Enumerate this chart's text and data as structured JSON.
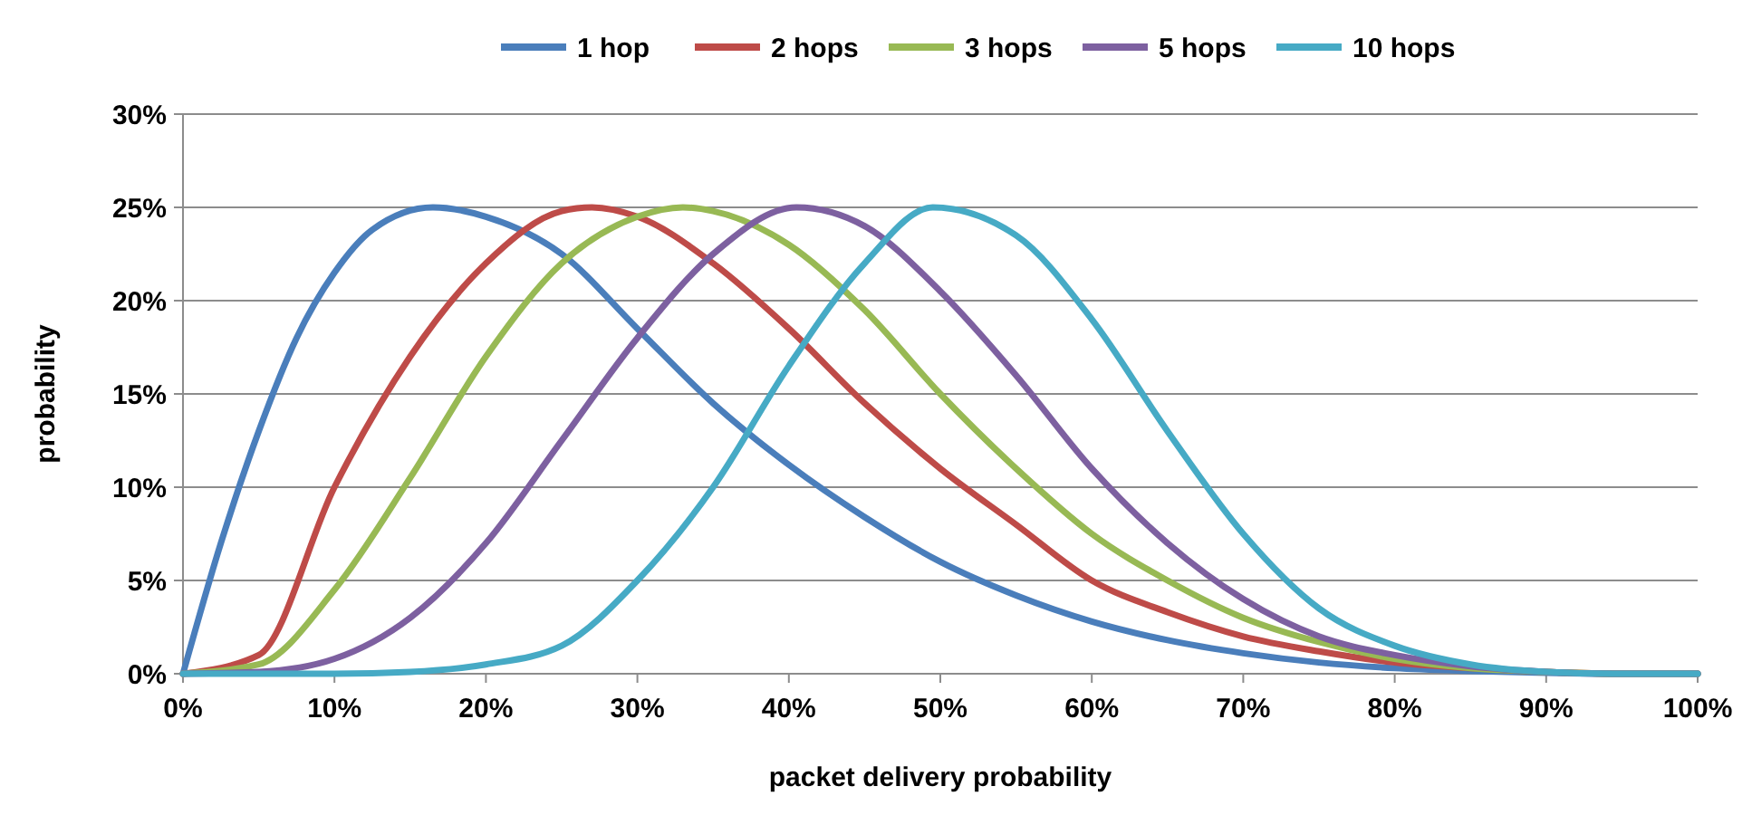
{
  "chart_data": {
    "type": "line",
    "xlabel": "packet delivery probability",
    "ylabel": "probability",
    "xlim": [
      0,
      100
    ],
    "ylim": [
      0,
      30
    ],
    "xticks": [
      {
        "value": 0,
        "label": "0%"
      },
      {
        "value": 10,
        "label": "10%"
      },
      {
        "value": 20,
        "label": "20%"
      },
      {
        "value": 30,
        "label": "30%"
      },
      {
        "value": 40,
        "label": "40%"
      },
      {
        "value": 50,
        "label": "50%"
      },
      {
        "value": 60,
        "label": "60%"
      },
      {
        "value": 70,
        "label": "70%"
      },
      {
        "value": 80,
        "label": "80%"
      },
      {
        "value": 90,
        "label": "90%"
      },
      {
        "value": 100,
        "label": "100%"
      }
    ],
    "yticks": [
      {
        "value": 0,
        "label": "0%"
      },
      {
        "value": 5,
        "label": "5%"
      },
      {
        "value": 10,
        "label": "10%"
      },
      {
        "value": 15,
        "label": "15%"
      },
      {
        "value": 20,
        "label": "20%"
      },
      {
        "value": 25,
        "label": "25%"
      },
      {
        "value": 30,
        "label": "30%"
      }
    ],
    "grid": "y",
    "legend": "top",
    "marker": "none",
    "line_style": "solid",
    "series": [
      {
        "name": "1 hop",
        "color": "#4a7ebb",
        "x": [
          0,
          2.5,
          5,
          7.5,
          10,
          12.5,
          16.5,
          20,
          25,
          30,
          35,
          40,
          45,
          50,
          55,
          60,
          65,
          70,
          75,
          80,
          85,
          90,
          95,
          100
        ],
        "values": [
          0,
          7,
          13,
          18,
          21.5,
          23.8,
          25,
          24.5,
          22.5,
          18.5,
          14.5,
          11.2,
          8.4,
          6,
          4.2,
          2.8,
          1.8,
          1.1,
          0.6,
          0.3,
          0.15,
          0.05,
          0,
          0
        ]
      },
      {
        "name": "2 hops",
        "color": "#be4b48",
        "x": [
          0,
          5,
          10,
          15,
          20,
          25,
          27,
          30,
          35,
          40,
          45,
          50,
          55,
          60,
          65,
          70,
          75,
          80,
          85,
          90,
          95,
          100
        ],
        "values": [
          0,
          1,
          10,
          17,
          22,
          24.8,
          25,
          24.5,
          22,
          18.5,
          14.5,
          11,
          8,
          5,
          3.3,
          2,
          1.2,
          0.6,
          0.3,
          0.1,
          0,
          0
        ]
      },
      {
        "name": "3 hops",
        "color": "#98b954",
        "x": [
          0,
          5,
          10,
          15,
          20,
          25,
          30,
          33,
          35,
          40,
          45,
          50,
          55,
          60,
          65,
          70,
          75,
          80,
          85,
          90,
          95,
          100
        ],
        "values": [
          0,
          0.5,
          4.5,
          10.5,
          17,
          22,
          24.5,
          25,
          24.8,
          23,
          19.5,
          15,
          11,
          7.5,
          5,
          3,
          1.7,
          0.8,
          0.3,
          0.1,
          0,
          0
        ]
      },
      {
        "name": "5 hops",
        "color": "#7d60a0",
        "x": [
          0,
          5,
          10,
          15,
          20,
          25,
          30,
          35,
          40.5,
          45,
          50,
          55,
          60,
          65,
          70,
          75,
          80,
          85,
          90,
          95,
          100
        ],
        "values": [
          0,
          0.1,
          0.8,
          3,
          7,
          12.5,
          18,
          22.5,
          25,
          24,
          20.5,
          16,
          11,
          7,
          4,
          2,
          1,
          0.4,
          0.1,
          0,
          0
        ]
      },
      {
        "name": "10 hops",
        "color": "#46aac5",
        "x": [
          0,
          5,
          10,
          15,
          20,
          25,
          30,
          35,
          40,
          45,
          49.5,
          55,
          60,
          65,
          70,
          75,
          80,
          85,
          90,
          95,
          100
        ],
        "values": [
          0,
          0,
          0,
          0.1,
          0.5,
          1.5,
          5,
          10,
          16.5,
          22,
          25,
          23.5,
          19,
          13,
          7.5,
          3.5,
          1.5,
          0.5,
          0.1,
          0,
          0
        ]
      }
    ]
  }
}
